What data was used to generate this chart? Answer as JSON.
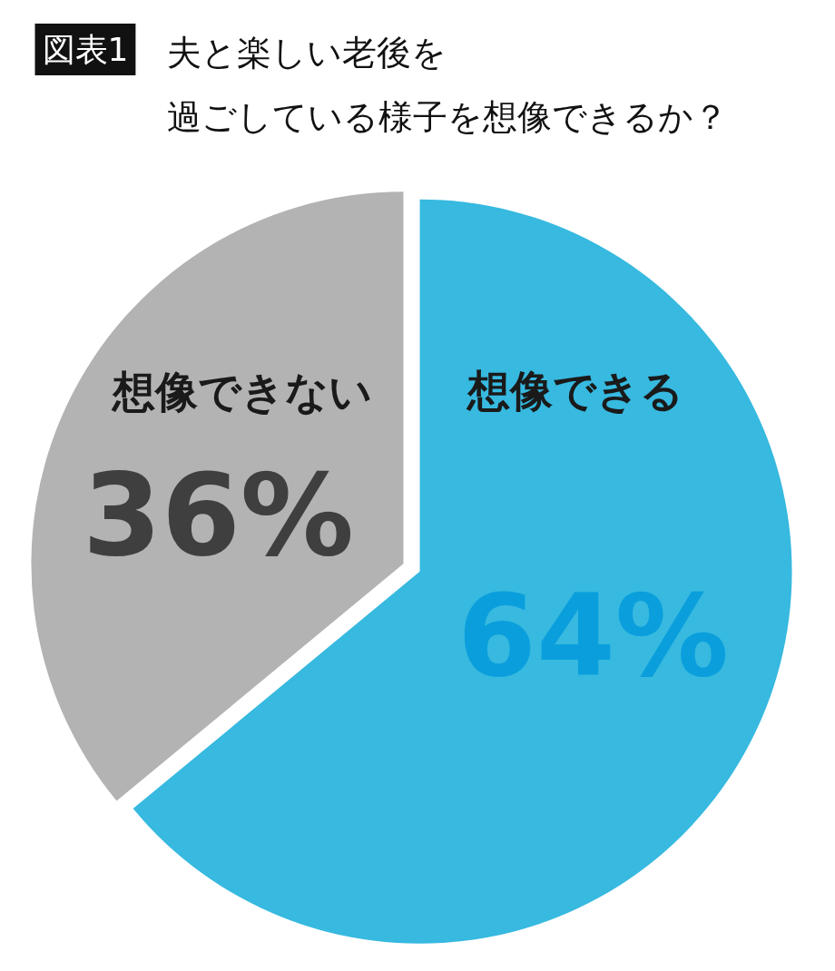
{
  "chart_data": {
    "type": "pie",
    "title": "夫と楽しい老後を過ごしている様子を想像できるか？",
    "annotations": [
      "図表1"
    ],
    "categories": [
      "想像できる",
      "想像できない"
    ],
    "values": [
      64,
      36
    ],
    "colors": [
      "#37b9e0",
      "#b3b3b3"
    ],
    "value_labels": [
      "64%",
      "36%"
    ]
  }
}
